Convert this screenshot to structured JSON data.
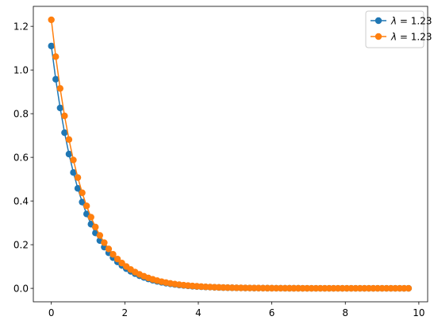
{
  "chart_data": {
    "type": "line",
    "title": "",
    "xlabel": "",
    "ylabel": "",
    "xlim": [
      -0.49,
      10.24
    ],
    "ylim": [
      -0.0615,
      1.2915
    ],
    "xticks": [
      0,
      2,
      4,
      6,
      8,
      10
    ],
    "yticks": [
      0.0,
      0.2,
      0.4,
      0.6,
      0.8,
      1.0,
      1.2
    ],
    "grid": false,
    "legend_placement": "top-right",
    "series": [
      {
        "name": "λ = 1.23",
        "legend_prefix": "λ",
        "legend_value": "= 1.23",
        "color": "#1f77b4",
        "decay": 1.23,
        "x": [
          0.0,
          0.12,
          0.24,
          0.36,
          0.48,
          0.6,
          0.72,
          0.84,
          0.96,
          1.08,
          1.2,
          1.32,
          1.44,
          1.56,
          1.68,
          1.8,
          1.92,
          2.04,
          2.16,
          2.28,
          2.4,
          2.52,
          2.64,
          2.76,
          2.88,
          3.0,
          3.12,
          3.24,
          3.36,
          3.48,
          3.6,
          3.72,
          3.84,
          3.96,
          4.08,
          4.2,
          4.32,
          4.44,
          4.56,
          4.68,
          4.8,
          4.92,
          5.04,
          5.16,
          5.28,
          5.4,
          5.52,
          5.64,
          5.76,
          5.88,
          6.0,
          6.12,
          6.24,
          6.36,
          6.48,
          6.6,
          6.72,
          6.84,
          6.96,
          7.08,
          7.2,
          7.32,
          7.44,
          7.56,
          7.68,
          7.8,
          7.92,
          8.04,
          8.16,
          8.28,
          8.4,
          8.52,
          8.64,
          8.76,
          8.88,
          9.0,
          9.12,
          9.24,
          9.36,
          9.48,
          9.6,
          9.72
        ],
        "y0": 1.11
      },
      {
        "name": "λ = 1.23",
        "legend_prefix": "λ",
        "legend_value": "= 1.23",
        "color": "#ff7f0e",
        "decay": 1.23,
        "x": [
          0.0,
          0.12,
          0.24,
          0.36,
          0.48,
          0.6,
          0.72,
          0.84,
          0.96,
          1.08,
          1.2,
          1.32,
          1.44,
          1.56,
          1.68,
          1.8,
          1.92,
          2.04,
          2.16,
          2.28,
          2.4,
          2.52,
          2.64,
          2.76,
          2.88,
          3.0,
          3.12,
          3.24,
          3.36,
          3.48,
          3.6,
          3.72,
          3.84,
          3.96,
          4.08,
          4.2,
          4.32,
          4.44,
          4.56,
          4.68,
          4.8,
          4.92,
          5.04,
          5.16,
          5.28,
          5.4,
          5.52,
          5.64,
          5.76,
          5.88,
          6.0,
          6.12,
          6.24,
          6.36,
          6.48,
          6.6,
          6.72,
          6.84,
          6.96,
          7.08,
          7.2,
          7.32,
          7.44,
          7.56,
          7.68,
          7.8,
          7.92,
          8.04,
          8.16,
          8.28,
          8.4,
          8.52,
          8.64,
          8.76,
          8.88,
          9.0,
          9.12,
          9.24,
          9.36,
          9.48,
          9.6,
          9.72
        ],
        "y0": 1.23
      }
    ]
  }
}
